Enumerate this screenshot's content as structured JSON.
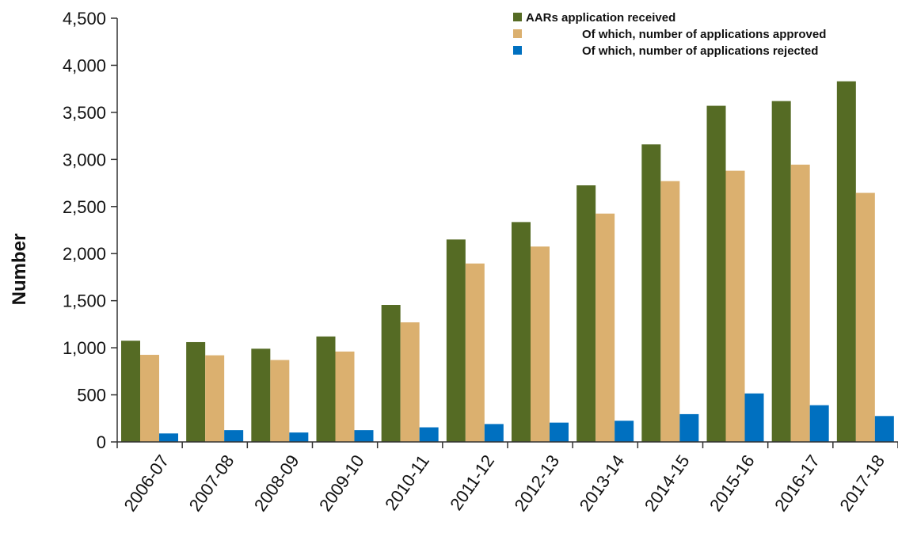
{
  "chart_data": {
    "type": "bar",
    "ylabel": "Number",
    "xlabel": "",
    "ylim": [
      0,
      4500
    ],
    "yticks": [
      "0",
      "500",
      "1,000",
      "1,500",
      "2,000",
      "2,500",
      "3,000",
      "3,500",
      "4,000",
      "4,500"
    ],
    "ytick_values": [
      0,
      500,
      1000,
      1500,
      2000,
      2500,
      3000,
      3500,
      4000,
      4500
    ],
    "categories": [
      "2006-07",
      "2007-08",
      "2008-09",
      "2009-10",
      "2010-11",
      "2011-12",
      "2012-13",
      "2013-14",
      "2014-15",
      "2015-16",
      "2016-17",
      "2017-18"
    ],
    "series": [
      {
        "name": "AARs application received",
        "color": "#556b24",
        "values": [
          1075,
          1060,
          990,
          1120,
          1455,
          2150,
          2335,
          2725,
          3160,
          3570,
          3620,
          3830
        ]
      },
      {
        "name": "Of which, number of applications approved",
        "color": "#dbb06f",
        "values": [
          925,
          920,
          870,
          960,
          1270,
          1895,
          2075,
          2425,
          2770,
          2880,
          2945,
          2645
        ]
      },
      {
        "name": "Of which, number of applications rejected",
        "color": "#0070c0",
        "values": [
          90,
          125,
          100,
          125,
          155,
          190,
          205,
          225,
          295,
          515,
          390,
          275
        ]
      }
    ],
    "legend_position": "top-right",
    "grid": false
  }
}
